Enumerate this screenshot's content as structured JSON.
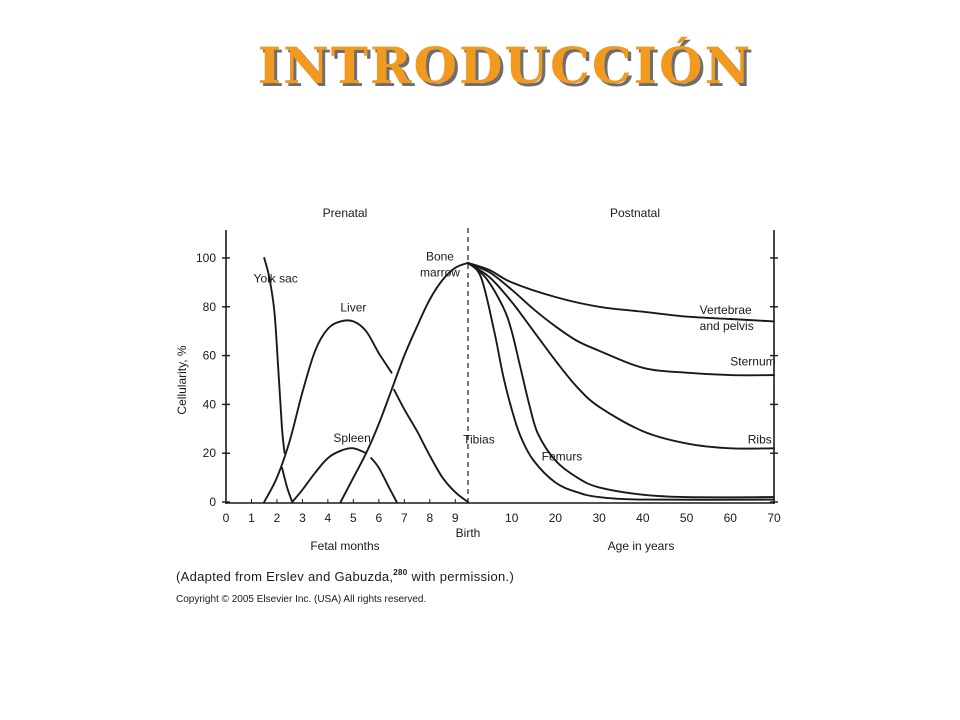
{
  "slide": {
    "title": "INTRODUCCIÓN",
    "credit": {
      "prefix": "(Adapted from Erslev and Gabuzda,",
      "ref": "280",
      "suffix": " with permission.)"
    },
    "copyright": "Copyright © 2005 Elsevier Inc. (USA) All rights reserved.",
    "colors": {
      "title": "#f29a1f",
      "title_shadow": "#6e6e6e",
      "ink": "#1a1a1a"
    }
  },
  "chart_data": {
    "type": "line",
    "ylabel": "Cellularity, %",
    "ylim": [
      0,
      100
    ],
    "yticks": [
      0,
      20,
      40,
      60,
      80,
      100
    ],
    "sections": {
      "left": "Prenatal",
      "right": "Postnatal"
    },
    "birth_label": "Birth",
    "prenatal_axis": {
      "xlabel": "Fetal months",
      "ticks": [
        "0",
        "1",
        "2",
        "3",
        "4",
        "5",
        "6",
        "7",
        "8",
        "9"
      ],
      "xlim": [
        0,
        9.5
      ]
    },
    "postnatal_axis": {
      "xlabel": "Age in years",
      "ticks": [
        "10",
        "20",
        "30",
        "40",
        "50",
        "60",
        "70"
      ],
      "xlim": [
        0,
        70
      ]
    },
    "series": [
      {
        "name": "Yolk sac",
        "label_lines": [
          "Yolk sac"
        ],
        "label_at": {
          "phase": "pre",
          "x": 1.95,
          "y": 90
        },
        "segments": [
          {
            "phase": "pre",
            "points": [
              [
                1.5,
                100
              ],
              [
                1.7,
                92
              ],
              [
                1.9,
                78
              ],
              [
                2.05,
                55
              ],
              [
                2.2,
                30
              ],
              [
                2.3,
                20
              ]
            ]
          }
        ]
      },
      {
        "name": "Liver",
        "label_lines": [
          "Liver"
        ],
        "label_at": {
          "phase": "pre",
          "x": 5.0,
          "y": 78
        },
        "segments": [
          {
            "phase": "pre",
            "points": [
              [
                1.5,
                0
              ],
              [
                2.0,
                10
              ],
              [
                2.5,
                25
              ],
              [
                3.0,
                45
              ],
              [
                3.5,
                62
              ],
              [
                4.0,
                71
              ],
              [
                4.5,
                74
              ],
              [
                5.0,
                74
              ],
              [
                5.5,
                70
              ],
              [
                6.0,
                61
              ],
              [
                6.5,
                53
              ]
            ]
          },
          {
            "phase": "pre",
            "points": [
              [
                6.6,
                46
              ],
              [
                7.0,
                38
              ],
              [
                7.5,
                29
              ],
              [
                8.0,
                19
              ],
              [
                8.5,
                10
              ],
              [
                9.0,
                4
              ],
              [
                9.5,
                0
              ]
            ]
          }
        ]
      },
      {
        "name": "Spleen",
        "label_lines": [
          "Spleen"
        ],
        "label_at": {
          "phase": "pre",
          "x": 4.95,
          "y": 24.5
        },
        "segments": [
          {
            "phase": "pre",
            "points": [
              [
                2.2,
                14
              ],
              [
                2.4,
                6
              ],
              [
                2.6,
                0
              ]
            ]
          },
          {
            "phase": "pre",
            "points": [
              [
                2.6,
                0
              ],
              [
                3.0,
                5
              ],
              [
                3.5,
                12
              ],
              [
                4.0,
                18
              ],
              [
                4.5,
                21
              ],
              [
                5.0,
                22
              ],
              [
                5.5,
                20
              ]
            ]
          },
          {
            "phase": "pre",
            "points": [
              [
                5.7,
                18
              ],
              [
                6.0,
                14
              ],
              [
                6.4,
                6
              ],
              [
                6.7,
                0
              ]
            ]
          }
        ]
      },
      {
        "name": "Bone marrow",
        "label_lines": [
          "Bone",
          "marrow"
        ],
        "label_at": {
          "phase": "pre",
          "x": 8.4,
          "y": 99
        },
        "segments": [
          {
            "phase": "pre",
            "points": [
              [
                4.5,
                0
              ],
              [
                5.0,
                10
              ],
              [
                5.5,
                20
              ],
              [
                6.0,
                32
              ],
              [
                6.5,
                46
              ],
              [
                7.0,
                60
              ],
              [
                7.5,
                72
              ],
              [
                8.0,
                83
              ],
              [
                8.5,
                91
              ],
              [
                9.0,
                96
              ],
              [
                9.5,
                98
              ]
            ]
          }
        ]
      },
      {
        "name": "Vertebrae and pelvis",
        "label_lines": [
          "Vertebrae",
          "and pelvis"
        ],
        "label_at": {
          "phase": "post",
          "x": 53,
          "y": 77
        },
        "segments": [
          {
            "phase": "post",
            "points": [
              [
                0,
                98
              ],
              [
                5,
                95
              ],
              [
                10,
                90
              ],
              [
                20,
                84
              ],
              [
                30,
                80
              ],
              [
                40,
                78
              ],
              [
                50,
                76
              ],
              [
                60,
                75
              ],
              [
                70,
                74
              ]
            ]
          }
        ]
      },
      {
        "name": "Sternum",
        "label_lines": [
          "Sternum"
        ],
        "label_at": {
          "phase": "post",
          "x": 60,
          "y": 56
        },
        "segments": [
          {
            "phase": "post",
            "points": [
              [
                0,
                98
              ],
              [
                5,
                94
              ],
              [
                10,
                87
              ],
              [
                15,
                79
              ],
              [
                20,
                72
              ],
              [
                25,
                66
              ],
              [
                30,
                62
              ],
              [
                40,
                55
              ],
              [
                50,
                53
              ],
              [
                60,
                52
              ],
              [
                70,
                52
              ]
            ]
          }
        ]
      },
      {
        "name": "Ribs",
        "label_lines": [
          "Ribs"
        ],
        "label_at": {
          "phase": "post",
          "x": 64,
          "y": 24
        },
        "segments": [
          {
            "phase": "post",
            "points": [
              [
                0,
                98
              ],
              [
                5,
                92
              ],
              [
                10,
                82
              ],
              [
                15,
                70
              ],
              [
                20,
                58
              ],
              [
                25,
                47
              ],
              [
                30,
                39
              ],
              [
                40,
                29
              ],
              [
                50,
                24
              ],
              [
                60,
                22
              ],
              [
                70,
                22
              ]
            ]
          }
        ]
      },
      {
        "name": "Femurs",
        "label_lines": [
          "Femurs"
        ],
        "label_at": {
          "phase": "post",
          "x": 21.5,
          "y": 17
        },
        "segments": [
          {
            "phase": "post",
            "points": [
              [
                0,
                98
              ],
              [
                4,
                92
              ],
              [
                8,
                80
              ],
              [
                10,
                70
              ],
              [
                12,
                55
              ],
              [
                14,
                40
              ],
              [
                16,
                28
              ],
              [
                20,
                17
              ],
              [
                25,
                10
              ],
              [
                30,
                6
              ],
              [
                40,
                3
              ],
              [
                50,
                2
              ],
              [
                70,
                2
              ]
            ]
          }
        ]
      },
      {
        "name": "Tibias",
        "label_lines": [
          "Tibias"
        ],
        "label_at": {
          "phase": "post",
          "x": 2.5,
          "y": 24
        },
        "segments": [
          {
            "phase": "post",
            "points": [
              [
                0,
                98
              ],
              [
                3,
                92
              ],
              [
                6,
                70
              ],
              [
                8,
                52
              ],
              [
                10,
                38
              ],
              [
                12,
                27
              ],
              [
                15,
                17
              ],
              [
                20,
                8
              ],
              [
                25,
                4
              ],
              [
                30,
                2
              ],
              [
                40,
                1
              ],
              [
                70,
                1
              ]
            ]
          }
        ]
      }
    ]
  }
}
